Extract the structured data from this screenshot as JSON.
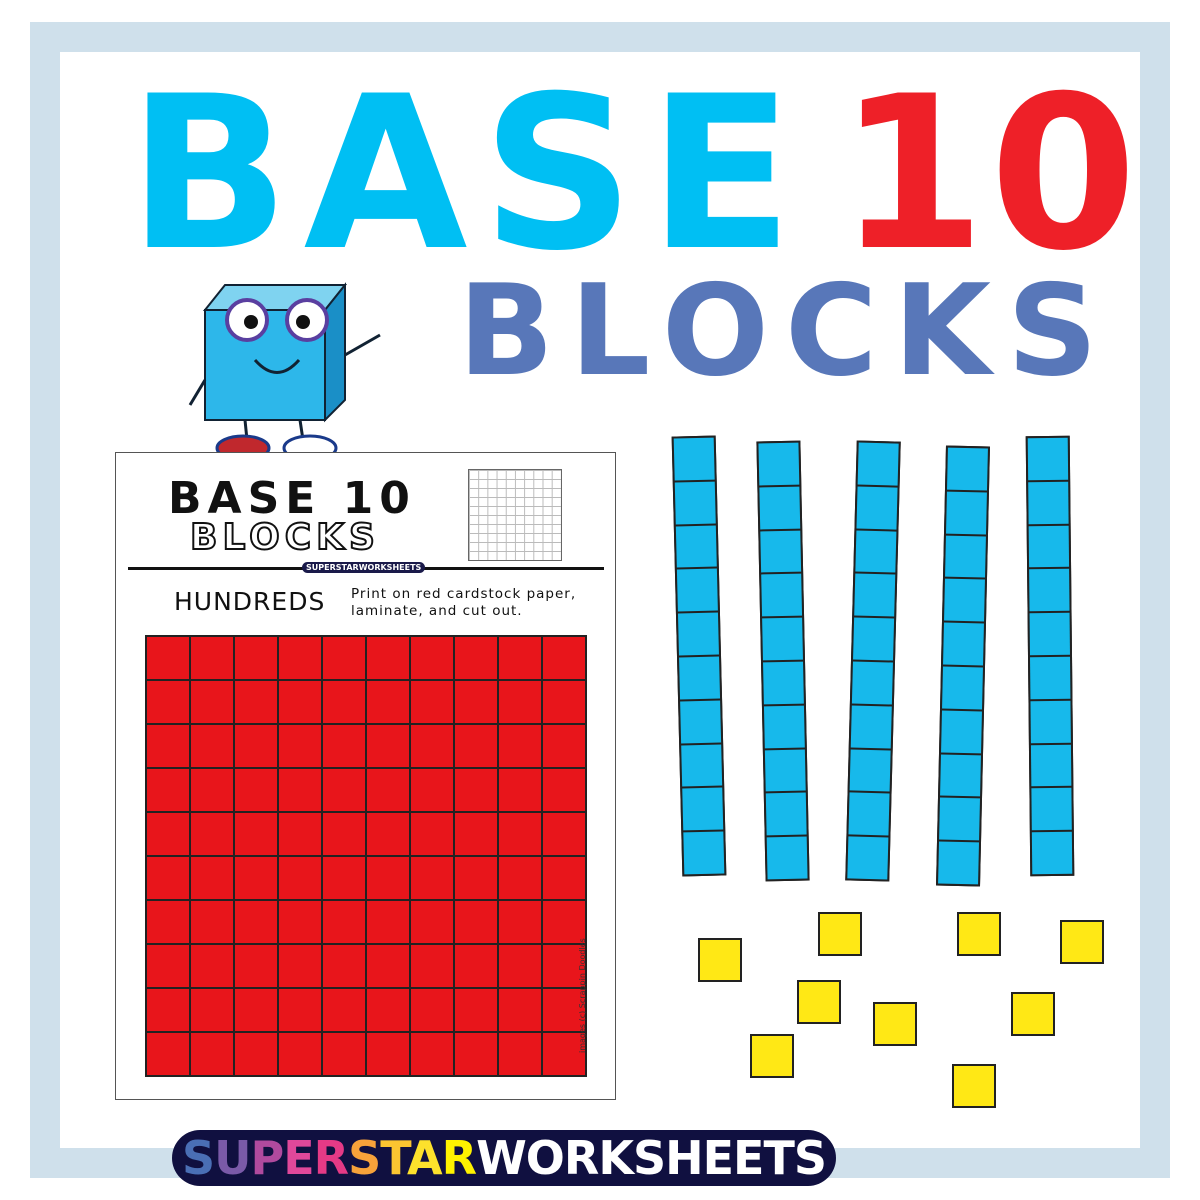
{
  "title": {
    "word1": "BASE",
    "word2": "10",
    "word3": "BLOCKS"
  },
  "colors": {
    "frame": "#cfe0eb",
    "base": "#00bff3",
    "ten": "#ee2028",
    "blocks": "#5877b9",
    "hundreds": "#e8151b",
    "tens": "#17b9eb",
    "ones": "#ffe815"
  },
  "worksheet": {
    "title": "BASE 10",
    "subtitle": "BLOCKS",
    "small_logo": "SUPERSTARWORKSHEETS",
    "heading": "HUNDREDS",
    "instructions": "Print on red cardstock paper, laminate, and cut out.",
    "credit": "images (c) Scrappin Doodles",
    "grid_rows": 10,
    "grid_cols": 10
  },
  "tens_rods": {
    "count": 5,
    "units_per_rod": 10
  },
  "ones_units": {
    "count": 9
  },
  "mascot": "blue-cube-mascot",
  "logo": {
    "parts": [
      {
        "text": "S",
        "color": "#4a6fb5"
      },
      {
        "text": "U",
        "color": "#7a5aa8"
      },
      {
        "text": "P",
        "color": "#b04a9e"
      },
      {
        "text": "E",
        "color": "#e0489a"
      },
      {
        "text": "R",
        "color": "#e53a86"
      },
      {
        "text": "S",
        "color": "#f7a23a"
      },
      {
        "text": "T",
        "color": "#fbc531"
      },
      {
        "text": "A",
        "color": "#fde12c"
      },
      {
        "text": "R",
        "color": "#fff200"
      },
      {
        "text": "WORKSHEETS",
        "color": "#ffffff"
      }
    ]
  }
}
